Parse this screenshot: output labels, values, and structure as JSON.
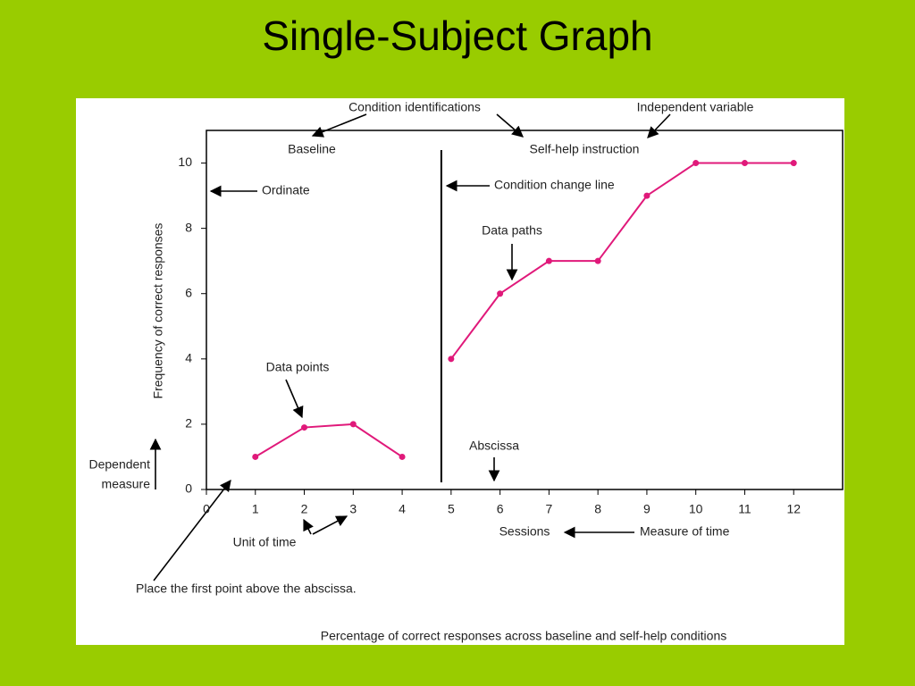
{
  "title": "Single-Subject Graph",
  "chart_data": {
    "type": "line",
    "caption": "Percentage of correct responses across baseline and self-help conditions",
    "xlabel": "Sessions",
    "ylabel": "Frequency of correct responses",
    "xlim": [
      0,
      13
    ],
    "ylim": [
      0,
      11
    ],
    "xticks": [
      0,
      1,
      2,
      3,
      4,
      5,
      6,
      7,
      8,
      9,
      10,
      11,
      12
    ],
    "yticks": [
      0,
      2,
      4,
      6,
      8,
      10
    ],
    "phase_change_x": 4.8,
    "series": [
      {
        "name": "Baseline",
        "color": "#e0197a",
        "x": [
          1,
          2,
          3,
          4
        ],
        "values": [
          1,
          1.9,
          2,
          1
        ]
      },
      {
        "name": "Self-help instruction",
        "color": "#e0197a",
        "x": [
          5,
          6,
          7,
          8,
          9,
          10,
          11,
          12
        ],
        "values": [
          4,
          6,
          7,
          7,
          9,
          10,
          10,
          10
        ]
      }
    ],
    "annotations": [
      "Condition identifications",
      "Independent variable",
      "Ordinate",
      "Condition change line",
      "Data paths",
      "Data points",
      "Abscissa",
      "Dependent",
      "measure",
      "Unit of time",
      "Measure of time",
      "Place the first point above the abscissa."
    ]
  }
}
